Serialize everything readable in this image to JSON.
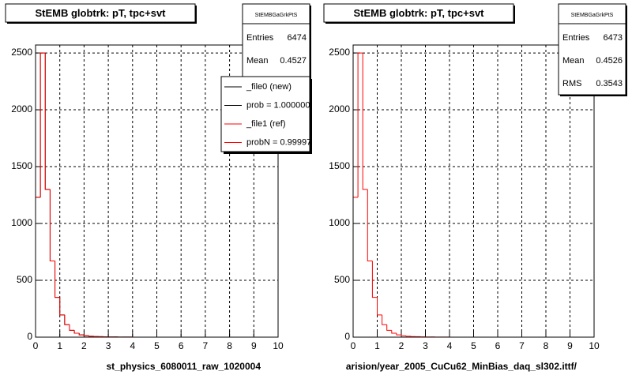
{
  "chart_data": [
    {
      "type": "histogram",
      "title": "StEMB globtrk: pT, tpc+svt",
      "xlabel": "st_physics_6080011_raw_1020004",
      "bins": [
        0,
        0.2,
        0.4,
        0.6,
        0.8,
        1,
        1.2,
        1.4,
        1.6,
        1.8,
        2,
        2.2,
        2.4,
        2.6,
        2.8,
        3,
        3.2,
        3.4,
        3.6,
        3.8,
        4,
        4.2,
        4.4,
        4.6,
        4.8,
        5,
        5.2,
        5.4,
        5.6,
        5.8,
        6,
        6.2,
        6.4,
        6.6,
        6.8,
        7,
        7.2,
        7.4,
        7.6,
        7.8,
        8,
        8.2,
        8.4,
        8.6,
        8.8,
        9,
        9.2,
        9.4,
        9.6,
        9.8,
        10
      ],
      "series": [
        {
          "name": "_file0 (new)",
          "stat_label": "prob = 1.000000",
          "color": "#000000",
          "values": [
            1230,
            2500,
            1300,
            670,
            350,
            195,
            110,
            60,
            35,
            20,
            12,
            8,
            5,
            4,
            3,
            2,
            2,
            1,
            1,
            1,
            0,
            0,
            0,
            0,
            0,
            0,
            0,
            0,
            0,
            0,
            0,
            0,
            0,
            0,
            0,
            0,
            0,
            0,
            0,
            0,
            0,
            0,
            0,
            0,
            0,
            0,
            0,
            0,
            0,
            0
          ]
        },
        {
          "name": "_file1 (ref)",
          "stat_label": "probN = 0.99997",
          "color": "#ff0000",
          "values": [
            1230,
            2500,
            1300,
            670,
            350,
            195,
            110,
            60,
            35,
            20,
            12,
            8,
            5,
            4,
            3,
            2,
            2,
            1,
            1,
            1,
            0,
            0,
            0,
            0,
            0,
            0,
            0,
            0,
            0,
            0,
            0,
            0,
            0,
            0,
            0,
            0,
            0,
            0,
            0,
            0,
            0,
            0,
            0,
            0,
            0,
            0,
            0,
            0,
            0,
            0
          ]
        }
      ],
      "xlim": [
        0,
        10
      ],
      "ylim": [
        0,
        2570
      ],
      "xticks": [
        0,
        1,
        2,
        3,
        4,
        5,
        6,
        7,
        8,
        9,
        10
      ],
      "yticks": [
        0,
        500,
        1000,
        1500,
        2000,
        2500
      ],
      "grid": true,
      "stats": {
        "title": "StEMBGaGrkPtS",
        "rows": [
          {
            "label": "Entries",
            "value": 6474
          },
          {
            "label": "Mean",
            "value": 0.4527
          }
        ]
      }
    },
    {
      "type": "histogram",
      "title": "StEMB globtrk: pT, tpc+svt",
      "xlabel": "arision/year_2005_CuCu62_MinBias_daq_sl302.ittf/",
      "bins": [
        0,
        0.2,
        0.4,
        0.6,
        0.8,
        1,
        1.2,
        1.4,
        1.6,
        1.8,
        2,
        2.2,
        2.4,
        2.6,
        2.8,
        3,
        3.2,
        3.4,
        3.6,
        3.8,
        4,
        4.2,
        4.4,
        4.6,
        4.8,
        5,
        5.2,
        5.4,
        5.6,
        5.8,
        6,
        6.2,
        6.4,
        6.6,
        6.8,
        7,
        7.2,
        7.4,
        7.6,
        7.8,
        8,
        8.2,
        8.4,
        8.6,
        8.8,
        9,
        9.2,
        9.4,
        9.6,
        9.8,
        10
      ],
      "series": [
        {
          "color": "#ff0000",
          "values": [
            1230,
            2500,
            1300,
            670,
            350,
            195,
            110,
            60,
            35,
            20,
            12,
            8,
            5,
            4,
            3,
            2,
            2,
            1,
            1,
            1,
            0,
            0,
            0,
            0,
            0,
            0,
            0,
            0,
            0,
            0,
            0,
            0,
            0,
            0,
            0,
            0,
            0,
            0,
            0,
            0,
            0,
            0,
            0,
            0,
            0,
            0,
            0,
            0,
            0,
            0
          ]
        }
      ],
      "xlim": [
        0,
        10
      ],
      "ylim": [
        0,
        2570
      ],
      "xticks": [
        0,
        1,
        2,
        3,
        4,
        5,
        6,
        7,
        8,
        9,
        10
      ],
      "yticks": [
        0,
        500,
        1000,
        1500,
        2000,
        2500
      ],
      "grid": true,
      "stats": {
        "title": "StEMBGaGrkPtS",
        "rows": [
          {
            "label": "Entries",
            "value": 6473
          },
          {
            "label": "Mean",
            "value": 0.4526
          },
          {
            "label": "RMS",
            "value": 0.3543
          }
        ]
      }
    }
  ]
}
